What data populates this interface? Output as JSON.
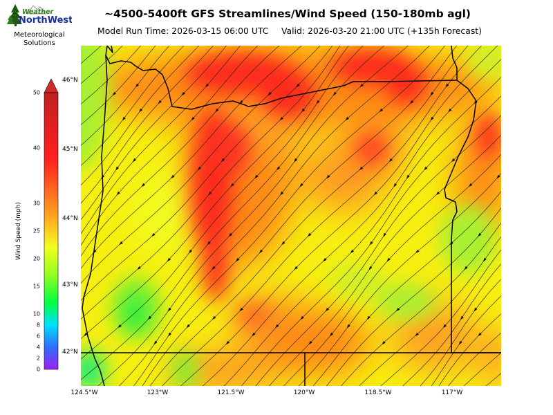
{
  "header": {
    "title": "~4500-5400ft GFS Streamlines/Wind Speed (150-180mb agl)",
    "model_run": "Model Run Time: 2026-03-15 06:00 UTC",
    "valid": "Valid: 2026-03-20 21:00 UTC  (+135h Forecast)"
  },
  "logo": {
    "word1": "Weather",
    "word2": "NorthWest",
    "org_line1": "Meteorological",
    "org_line2": "Solutions",
    "colors": {
      "word1": "#2e7d1e",
      "word2": "#1a2fa0",
      "tree": "#1f5a14"
    }
  },
  "colorbar": {
    "label": "Wind Speed (mph)",
    "ticks": [
      "0",
      "2",
      "4",
      "6",
      "8",
      "10",
      "15",
      "20",
      "25",
      "30",
      "40",
      "50"
    ],
    "stops": [
      {
        "value": 0,
        "color": "#a020f0"
      },
      {
        "value": 4,
        "color": "#2f6cff"
      },
      {
        "value": 8,
        "color": "#00e0ff"
      },
      {
        "value": 12,
        "color": "#00ff40"
      },
      {
        "value": 17,
        "color": "#90ff20"
      },
      {
        "value": 22,
        "color": "#f2ff20"
      },
      {
        "value": 28,
        "color": "#ffa020"
      },
      {
        "value": 38,
        "color": "#ff2020"
      },
      {
        "value": 50,
        "color": "#c02020"
      }
    ]
  },
  "map": {
    "lat_labels": [
      "46°N",
      "45°N",
      "44°N",
      "43°N",
      "42°N"
    ],
    "lon_labels": [
      "124.5°W",
      "123°W",
      "121.5°W",
      "120°W",
      "118.5°W",
      "117°W"
    ],
    "region": "Oregon"
  }
}
